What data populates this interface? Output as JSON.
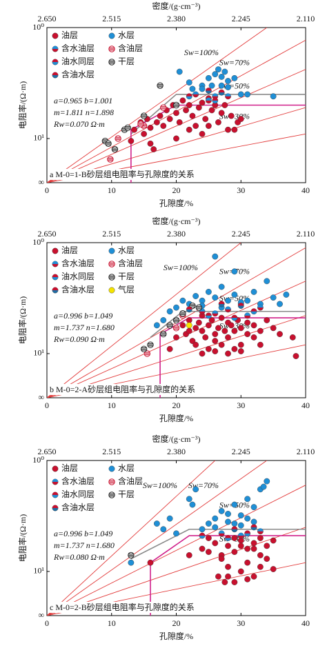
{
  "chart_data": [
    {
      "type": "scatter",
      "title": "a M-0=1-B砂层组电阻率与孔隙度的关系",
      "xlabel": "孔隙度/%",
      "ylabel": "电阻率/(Ω·m)",
      "x2label": "密度/(g·cm⁻³)",
      "xlim": [
        0,
        40
      ],
      "xticks": [
        0,
        10,
        20,
        30,
        40
      ],
      "x2ticks": [
        {
          "value": 0,
          "label": "2.650"
        },
        {
          "value": 10,
          "label": "2.515"
        },
        {
          "value": 20,
          "label": "2.380"
        },
        {
          "value": 30,
          "label": "2.245"
        },
        {
          "value": 40,
          "label": "2.110"
        }
      ],
      "ylim": [
        4,
        100
      ],
      "log_y": true,
      "yticks": [
        {
          "value": 100,
          "label": "10⁰"
        },
        {
          "value": 10,
          "label": "10¹"
        },
        {
          "value": 4,
          "label": "∞"
        }
      ],
      "series": [
        {
          "name": "油层",
          "color": "#c8102e",
          "style": "solid",
          "x": [
            13,
            13.5,
            14.5,
            15,
            15.5,
            16,
            16.5,
            17,
            17.5,
            18,
            18.5,
            19,
            19.5,
            20,
            20.5,
            21,
            21.5,
            22,
            22.5,
            23,
            23.5,
            24,
            24.5,
            25,
            25.5,
            26,
            26.5,
            27,
            27.5,
            28,
            28.5,
            29,
            29.5,
            25,
            22,
            24,
            30,
            16,
            20
          ],
          "y": [
            9.5,
            12,
            14,
            11,
            15,
            12.5,
            8,
            14,
            16,
            13,
            18,
            15,
            20,
            17,
            14,
            22,
            18,
            20,
            16,
            13,
            19,
            21,
            15,
            23,
            18,
            20,
            14,
            17,
            20,
            12,
            16,
            12,
            14,
            13,
            12,
            11,
            15,
            9,
            10
          ]
        },
        {
          "name": "水层",
          "color": "#1f8fd6",
          "style": "solid",
          "x": [
            20.5,
            22,
            24,
            25,
            26,
            26.5,
            27,
            27.5,
            28,
            25.5,
            27,
            28,
            30,
            31,
            35,
            29,
            24,
            22.5
          ],
          "y": [
            40,
            32,
            30,
            35,
            38,
            42,
            36,
            40,
            33,
            30,
            30,
            29,
            25,
            25,
            24,
            35,
            28,
            28
          ]
        },
        {
          "name": "含水油层",
          "color": "#c8102e",
          "color2": "#1f8fd6",
          "style": "split",
          "x": [
            23,
            25,
            26,
            28
          ],
          "y": [
            25,
            22,
            24,
            24
          ]
        },
        {
          "name": "含油层",
          "color": "#c8102e",
          "style": "striped",
          "x": [
            9.8,
            11,
            15,
            18,
            14.5
          ],
          "y": [
            6.5,
            10,
            13,
            19,
            13.5
          ]
        },
        {
          "name": "油水同层",
          "color": "#1f8fd6",
          "color2": "#c8102e",
          "style": "split",
          "x": [
            26,
            22
          ],
          "y": [
            22,
            24
          ]
        },
        {
          "name": "干层",
          "color": "#222222",
          "style": "striped",
          "x": [
            9,
            9.5,
            10.5,
            12,
            12.5,
            15,
            17.5,
            20
          ],
          "y": [
            9.5,
            9,
            8,
            12,
            12.5,
            16,
            30,
            20
          ]
        },
        {
          "name": "含油水层",
          "color": "#1f6fa6",
          "color2": "#c8102e",
          "style": "split",
          "x": [
            25,
            27
          ],
          "y": [
            27,
            26
          ]
        }
      ],
      "lines": [
        {
          "name": "Sw=100%",
          "color": "#e23a3a",
          "x": [
            0,
            34
          ],
          "y": [
            4,
            100
          ]
        },
        {
          "name": "Sw=70%",
          "color": "#e23a3a",
          "x": [
            0,
            40
          ],
          "y": [
            4,
            77
          ]
        },
        {
          "name": "Sw=50%",
          "color": "#e23a3a",
          "x": [
            0,
            40
          ],
          "y": [
            4,
            42
          ]
        },
        {
          "name": "Sw=30%",
          "color": "#e23a3a",
          "x": [
            0,
            40
          ],
          "y": [
            4,
            19
          ]
        },
        {
          "color": "#e23a3a",
          "x": [
            0,
            40
          ],
          "y": [
            4,
            11
          ]
        }
      ],
      "cutoffs": [
        {
          "color": "#8a8a8a",
          "x": [
            13,
            20,
            40
          ],
          "y": [
            11,
            25,
            25
          ]
        },
        {
          "color": "#d0208a",
          "x": [
            13,
            13,
            20,
            40
          ],
          "y": [
            4,
            12,
            20,
            20
          ]
        }
      ],
      "annotations": [
        "a=0.965  b=1.001",
        "m=1.811  n=1.898",
        "Rw=0.070 Ω·m"
      ]
    },
    {
      "type": "scatter",
      "title": "b M-0=2-A砂层组电阻率与孔隙度的关系",
      "xlabel": "孔隙度/%",
      "ylabel": "电阻率/(Ω·m)",
      "x2label": "密度/(g·cm⁻³)",
      "xlim": [
        0,
        40
      ],
      "xticks": [
        0,
        10,
        20,
        30,
        40
      ],
      "x2ticks": [
        {
          "value": 0,
          "label": "2.650"
        },
        {
          "value": 10,
          "label": "2.515"
        },
        {
          "value": 20,
          "label": "2.380"
        },
        {
          "value": 30,
          "label": "2.245"
        },
        {
          "value": 40,
          "label": "2.110"
        }
      ],
      "ylim": [
        4,
        100
      ],
      "log_y": true,
      "yticks": [
        {
          "value": 100,
          "label": "10⁰"
        },
        {
          "value": 10,
          "label": "10¹"
        },
        {
          "value": 4,
          "label": "∞"
        }
      ],
      "series": [
        {
          "name": "油层",
          "color": "#c8102e",
          "style": "solid",
          "x": [
            19,
            20,
            21,
            21.5,
            22,
            22.5,
            23,
            23,
            23.5,
            24,
            24,
            24.5,
            25,
            25,
            25.5,
            26,
            26,
            26.5,
            27,
            27,
            27.5,
            28,
            28,
            28.5,
            29,
            29,
            29.5,
            30,
            30,
            31,
            31,
            32,
            32,
            33,
            33,
            34,
            35,
            36,
            38,
            38.5,
            22,
            24,
            26,
            28,
            30
          ],
          "y": [
            11,
            14,
            18,
            15,
            20,
            13,
            17,
            12,
            19,
            16,
            22,
            14,
            18,
            11,
            20,
            15,
            13,
            17,
            21,
            12,
            16,
            19,
            14,
            18,
            11,
            16,
            20,
            12,
            17,
            15,
            19,
            14,
            18,
            12,
            16,
            20,
            17,
            15,
            14,
            9.5,
            16,
            10,
            10.5,
            10,
            10.5
          ]
        },
        {
          "name": "水层",
          "color": "#1f8fd6",
          "style": "solid",
          "x": [
            17,
            18,
            19,
            20,
            21,
            22,
            23,
            24,
            25,
            26,
            26,
            27,
            28,
            29,
            29,
            30,
            31,
            32,
            33,
            34,
            35,
            36,
            37,
            24,
            27,
            30
          ],
          "y": [
            18,
            20,
            24,
            26,
            30,
            28,
            33,
            30,
            36,
            75,
            32,
            40,
            30,
            55,
            34,
            28,
            30,
            36,
            28,
            45,
            32,
            28,
            34,
            27,
            26,
            29
          ]
        },
        {
          "name": "含水油层",
          "color": "#c8102e",
          "color2": "#1f8fd6",
          "style": "split",
          "x": [
            24,
            26,
            28,
            31,
            33
          ],
          "y": [
            24,
            23,
            25,
            22,
            26
          ]
        },
        {
          "name": "含油层",
          "color": "#c8102e",
          "style": "striped",
          "x": [
            15.5,
            20,
            21
          ],
          "y": [
            10,
            17,
            22
          ]
        },
        {
          "name": "油水同层",
          "color": "#1f8fd6",
          "color2": "#c8102e",
          "style": "split",
          "x": [
            25,
            29,
            32
          ],
          "y": [
            22,
            21,
            24
          ]
        },
        {
          "name": "干层",
          "color": "#222222",
          "style": "striped",
          "x": [
            16,
            18,
            19,
            20,
            21,
            22.5,
            23.5,
            15
          ],
          "y": [
            12,
            15,
            18,
            20,
            23,
            27,
            26,
            11
          ]
        },
        {
          "name": "含油水层",
          "color": "#1f6fa6",
          "color2": "#c8102e",
          "style": "split",
          "x": [
            22,
            27,
            30
          ],
          "y": [
            25,
            28,
            27
          ]
        },
        {
          "name": "气层",
          "color": "#f5e400",
          "style": "solid",
          "x": [
            22
          ],
          "y": [
            18
          ]
        }
      ],
      "lines": [
        {
          "name": "Sw=100%",
          "color": "#e23a3a",
          "x": [
            0,
            30
          ],
          "y": [
            4,
            100
          ]
        },
        {
          "name": "Sw=70%",
          "color": "#e23a3a",
          "x": [
            0,
            40
          ],
          "y": [
            4,
            90
          ]
        },
        {
          "name": "Sw=50%",
          "color": "#e23a3a",
          "x": [
            0,
            40
          ],
          "y": [
            4,
            45
          ]
        },
        {
          "name": "Sw=30%",
          "color": "#e23a3a",
          "x": [
            0,
            40
          ],
          "y": [
            4,
            22
          ]
        },
        {
          "color": "#e23a3a",
          "x": [
            0,
            40
          ],
          "y": [
            4,
            12
          ]
        }
      ],
      "cutoffs": [
        {
          "color": "#8a8a8a",
          "x": [
            16,
            21,
            40
          ],
          "y": [
            14,
            24,
            24
          ]
        },
        {
          "color": "#d0208a",
          "x": [
            17.5,
            17.5,
            22,
            40
          ],
          "y": [
            4,
            15,
            21,
            21
          ]
        }
      ],
      "annotations": [
        "a=0.996  b=1.049",
        "m=1.737  n=1.680",
        "Rw=0.090 Ω·m"
      ]
    },
    {
      "type": "scatter",
      "title": "c M-0=2-B砂层组电阻率与孔隙度的关系",
      "xlabel": "孔隙度/%",
      "ylabel": "电阻率/(Ω·m)",
      "x2label": "密度/(g·cm⁻³)",
      "xlim": [
        0,
        40
      ],
      "xticks": [
        0,
        10,
        20,
        30,
        40
      ],
      "x2ticks": [
        {
          "value": 0,
          "label": "2.650"
        },
        {
          "value": 10,
          "label": "2.515"
        },
        {
          "value": 20,
          "label": "2.380"
        },
        {
          "value": 30,
          "label": "2.245"
        },
        {
          "value": 40,
          "label": "2.110"
        }
      ],
      "ylim": [
        4,
        100
      ],
      "log_y": true,
      "yticks": [
        {
          "value": 100,
          "label": "10⁰"
        },
        {
          "value": 10,
          "label": "10¹"
        },
        {
          "value": 4,
          "label": "∞"
        }
      ],
      "series": [
        {
          "name": "油层",
          "color": "#c8102e",
          "style": "solid",
          "x": [
            16,
            22,
            24,
            25,
            26,
            26.5,
            27,
            27.5,
            28,
            28,
            29,
            29,
            30,
            30,
            31,
            31,
            32,
            32,
            33,
            33,
            34,
            34,
            35,
            35,
            25,
            27,
            29,
            31,
            33,
            28,
            30,
            32
          ],
          "y": [
            12,
            14,
            16,
            20,
            18,
            9,
            14,
            8,
            17,
            11,
            15,
            8,
            19,
            10,
            16,
            12,
            18,
            9,
            20,
            11,
            17,
            13,
            19,
            10.5,
            15,
            13,
            20,
            8.5,
            14,
            9,
            17,
            16
          ]
        },
        {
          "name": "水层",
          "color": "#1f8fd6",
          "style": "solid",
          "x": [
            13,
            17,
            18,
            19,
            20,
            22,
            22.5,
            23,
            25,
            26,
            27,
            28,
            29,
            30,
            31,
            32,
            33,
            33.5,
            34,
            29,
            30,
            31,
            28,
            32,
            26,
            24
          ],
          "y": [
            12,
            27,
            24,
            30,
            22,
            45,
            40,
            55,
            27,
            30,
            35,
            28,
            40,
            32,
            45,
            38,
            55,
            58,
            65,
            27,
            26,
            30,
            33,
            28,
            25,
            24
          ]
        },
        {
          "name": "含水油层",
          "color": "#c8102e",
          "color2": "#1f8fd6",
          "style": "split",
          "x": [
            27,
            30,
            33
          ],
          "y": [
            22,
            21,
            23
          ]
        },
        {
          "name": "含油层",
          "color": "#c8102e",
          "style": "striped",
          "x": [],
          "y": []
        },
        {
          "name": "油水同层",
          "color": "#1f8fd6",
          "color2": "#c8102e",
          "style": "split",
          "x": [
            24,
            28,
            31
          ],
          "y": [
            21,
            20,
            22
          ]
        },
        {
          "name": "干层",
          "color": "#222222",
          "style": "striped",
          "x": [
            13
          ],
          "y": [
            14
          ]
        },
        {
          "name": "含油水层",
          "color": "#1f6fa6",
          "color2": "#c8102e",
          "style": "split",
          "x": [
            29,
            32
          ],
          "y": [
            24,
            25
          ]
        }
      ],
      "lines": [
        {
          "name": "Sw=100%",
          "color": "#e23a3a",
          "x": [
            0,
            26
          ],
          "y": [
            4,
            100
          ]
        },
        {
          "name": "Sw=70%",
          "color": "#e23a3a",
          "x": [
            0,
            34
          ],
          "y": [
            4,
            100
          ]
        },
        {
          "name": "Sw=50%",
          "color": "#e23a3a",
          "x": [
            0,
            40
          ],
          "y": [
            4,
            60
          ]
        },
        {
          "name": "Sw=30%",
          "color": "#e23a3a",
          "x": [
            0,
            40
          ],
          "y": [
            4,
            25
          ]
        },
        {
          "color": "#e23a3a",
          "x": [
            0,
            40
          ],
          "y": [
            4,
            12
          ]
        }
      ],
      "cutoffs": [
        {
          "color": "#8a8a8a",
          "x": [
            13,
            22,
            40
          ],
          "y": [
            13,
            24,
            24
          ]
        },
        {
          "color": "#d0208a",
          "x": [
            16,
            16,
            22,
            40
          ],
          "y": [
            4,
            12,
            21,
            21
          ]
        }
      ],
      "annotations": [
        "a=0.996  b=1.049",
        "m=1.737  n=1.680",
        "Rw=0.080 Ω·m"
      ]
    }
  ]
}
